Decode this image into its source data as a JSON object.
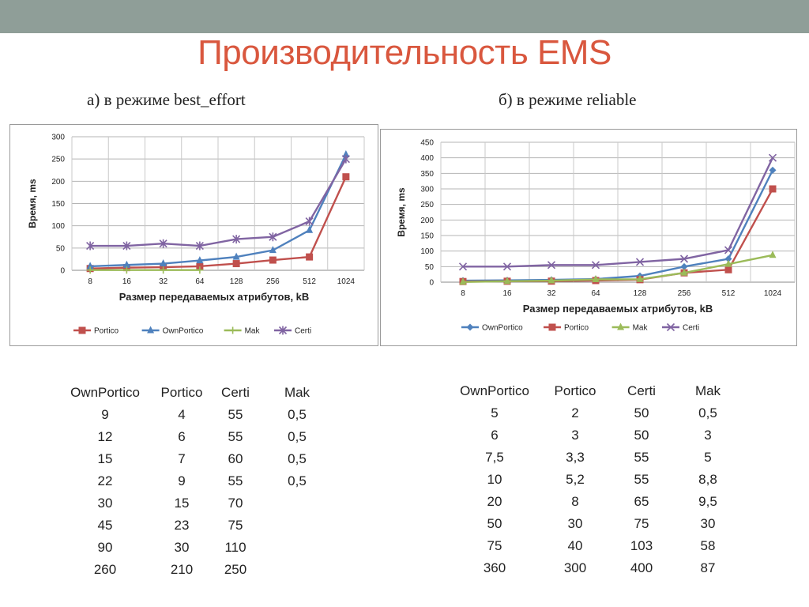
{
  "slide": {
    "title": "Производительность EMS",
    "subtitle_left": "а) в режиме best_effort",
    "subtitle_right": "б) в режиме reliable"
  },
  "chart_data": [
    {
      "type": "line",
      "ylabel": "Время, ms",
      "xlabel": "Размер передаваемых атрибутов, kB",
      "categories": [
        "8",
        "16",
        "32",
        "64",
        "128",
        "256",
        "512",
        "1024"
      ],
      "yticks": [
        "0",
        "50",
        "100",
        "150",
        "200",
        "250",
        "300"
      ],
      "ylim": [
        0,
        300
      ],
      "grid": true,
      "legend_position": "bottom",
      "series": [
        {
          "name": "Portico",
          "color": "#c0504d",
          "marker": "square",
          "values": [
            4,
            6,
            7,
            9,
            15,
            23,
            30,
            210
          ]
        },
        {
          "name": "OwnPortico",
          "color": "#4f81bd",
          "marker": "triangle",
          "values": [
            9,
            12,
            15,
            22,
            30,
            45,
            90,
            260
          ]
        },
        {
          "name": "Mak",
          "color": "#9bbb59",
          "marker": "plus",
          "values": [
            0.5,
            0.5,
            0.5,
            0.5,
            null,
            null,
            null,
            null
          ]
        },
        {
          "name": "Certi",
          "color": "#8064a2",
          "marker": "star",
          "values": [
            55,
            55,
            60,
            55,
            70,
            75,
            110,
            250
          ]
        }
      ]
    },
    {
      "type": "line",
      "ylabel": "Время, ms",
      "xlabel": "Размер передаваемых атрибутов, kB",
      "categories": [
        "8",
        "16",
        "32",
        "64",
        "128",
        "256",
        "512",
        "1024"
      ],
      "yticks": [
        "0",
        "50",
        "100",
        "150",
        "200",
        "250",
        "300",
        "350",
        "400",
        "450"
      ],
      "ylim": [
        0,
        450
      ],
      "grid": true,
      "legend_position": "bottom",
      "series": [
        {
          "name": "OwnPortico",
          "color": "#4f81bd",
          "marker": "diamond",
          "values": [
            5,
            6,
            7.5,
            10,
            20,
            50,
            75,
            360
          ]
        },
        {
          "name": "Portico",
          "color": "#c0504d",
          "marker": "square",
          "values": [
            2,
            3,
            3.3,
            5.2,
            8,
            30,
            40,
            300
          ]
        },
        {
          "name": "Mak",
          "color": "#9bbb59",
          "marker": "triangle",
          "values": [
            0.5,
            3,
            5,
            8.8,
            9.5,
            30,
            58,
            87
          ]
        },
        {
          "name": "Certi",
          "color": "#8064a2",
          "marker": "x",
          "values": [
            50,
            50,
            55,
            55,
            65,
            75,
            103,
            400
          ]
        }
      ]
    }
  ],
  "table_left": {
    "columns": [
      {
        "header": "OwnPortico",
        "cells": [
          "9",
          "12",
          "15",
          "22",
          "30",
          "45",
          "90",
          "260"
        ]
      },
      {
        "header": "Portico",
        "cells": [
          "4",
          "6",
          "7",
          "9",
          "15",
          "23",
          "30",
          "210"
        ]
      },
      {
        "header": "Certi",
        "cells": [
          "55",
          "55",
          "60",
          "55",
          "70",
          "75",
          "110",
          "250"
        ]
      },
      {
        "header": "Mak",
        "cells": [
          "0,5",
          "0,5",
          "0,5",
          "0,5"
        ]
      }
    ]
  },
  "table_right": {
    "columns": [
      {
        "header": "OwnPortico",
        "cells": [
          "5",
          "6",
          "7,5",
          "10",
          "20",
          "50",
          "75",
          "360"
        ]
      },
      {
        "header": "Portico",
        "cells": [
          "2",
          "3",
          "3,3",
          "5,2",
          "8",
          "30",
          "40",
          "300"
        ]
      },
      {
        "header": "Certi",
        "cells": [
          "50",
          "50",
          "55",
          "55",
          "65",
          "75",
          "103",
          "400"
        ]
      },
      {
        "header": "Mak",
        "cells": [
          "0,5",
          "3",
          "5",
          "8,8",
          "9,5",
          "30",
          "58",
          "87"
        ]
      }
    ]
  }
}
